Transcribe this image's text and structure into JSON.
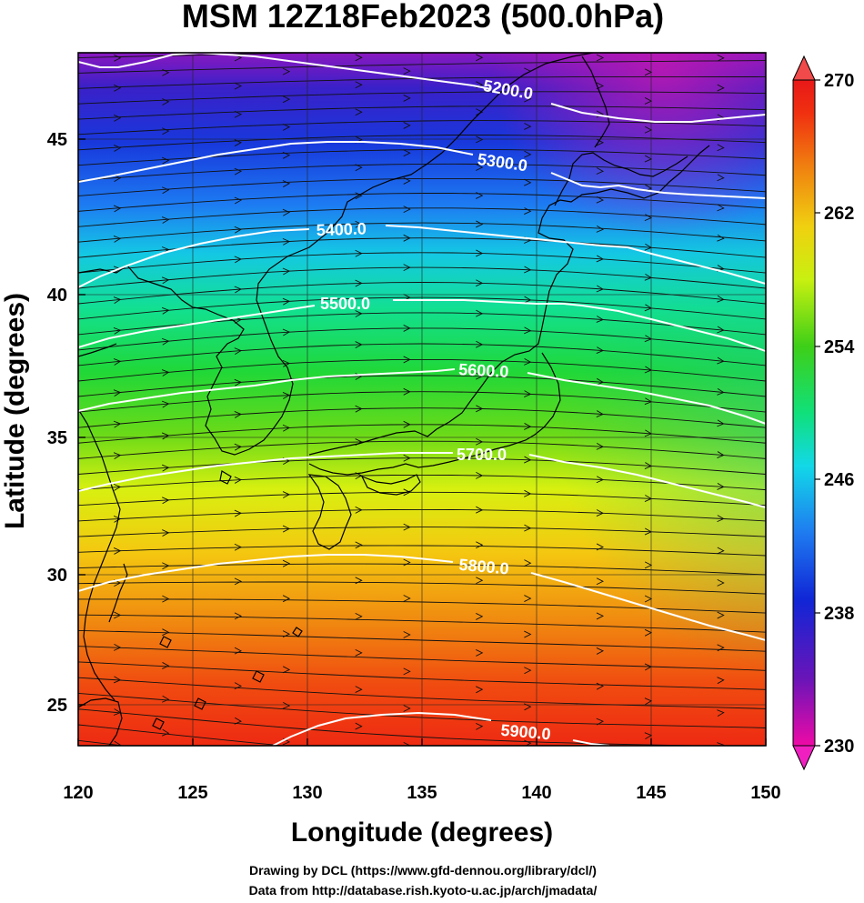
{
  "title": "MSM 12Z18Feb2023 (500.0hPa)",
  "x_axis": {
    "label": "Longitude (degrees)",
    "ticks": [
      "120",
      "125",
      "130",
      "135",
      "140",
      "145",
      "150"
    ]
  },
  "y_axis": {
    "label": "Latitude  (degrees)",
    "ticks": [
      "25",
      "30",
      "35",
      "40",
      "45"
    ]
  },
  "colorbar": {
    "ticks": [
      "270",
      "262",
      "254",
      "246",
      "238",
      "230"
    ],
    "colors": [
      "#ee0aa6",
      "#6a14b8",
      "#1026d6",
      "#1f7bf0",
      "#12d8e8",
      "#10e07a",
      "#3ecf18",
      "#c8f010",
      "#f0d010",
      "#f08010",
      "#f03010",
      "#e81818"
    ]
  },
  "contours": [
    {
      "label": "5200.0"
    },
    {
      "label": "5300.0"
    },
    {
      "label": "5400.0"
    },
    {
      "label": "5500.0"
    },
    {
      "label": "5600.0"
    },
    {
      "label": "5700.0"
    },
    {
      "label": "5800.0"
    },
    {
      "label": "5900.0"
    }
  ],
  "credits": [
    "Drawing by DCL (https://www.gfd-dennou.org/library/dcl/)",
    "Data from http://database.rish.kyoto-u.ac.jp/arch/jmadata/"
  ]
}
